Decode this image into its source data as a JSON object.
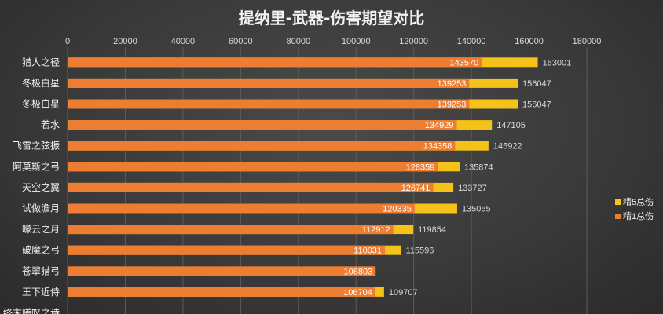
{
  "chart_data": {
    "type": "bar",
    "orientation": "horizontal",
    "stacked": false,
    "title": "提纳里-武器-伤害期望对比",
    "xlim": [
      0,
      180000
    ],
    "x_ticks": [
      "0",
      "20000",
      "40000",
      "60000",
      "80000",
      "100000",
      "120000",
      "140000",
      "160000",
      "180000"
    ],
    "grid": true,
    "legend_position": "right",
    "categories": [
      "猎人之径",
      "冬极白星",
      "冬极白星",
      "若水",
      "飞雷之弦振",
      "阿莫斯之弓",
      "天空之翼",
      "试做澹月",
      "曚云之月",
      "破魔之弓",
      "苍翠猎弓",
      "王下近侍",
      "终末嗟叹之诗"
    ],
    "series": [
      {
        "name": "精5总伤",
        "color": "#f5c219",
        "values": [
          163001,
          156047,
          156047,
          147105,
          145922,
          135874,
          133727,
          135055,
          119854,
          115596,
          null,
          109707,
          null
        ]
      },
      {
        "name": "精1总伤",
        "color": "#ed7d31",
        "values": [
          143570,
          139253,
          139253,
          134929,
          134358,
          128359,
          126741,
          120335,
          112912,
          110031,
          106803,
          106704,
          null
        ]
      }
    ]
  },
  "colors": {
    "label_text": "#f2f2f2",
    "axis_text": "#d9d9d9",
    "grid": "#5c5c5c"
  }
}
